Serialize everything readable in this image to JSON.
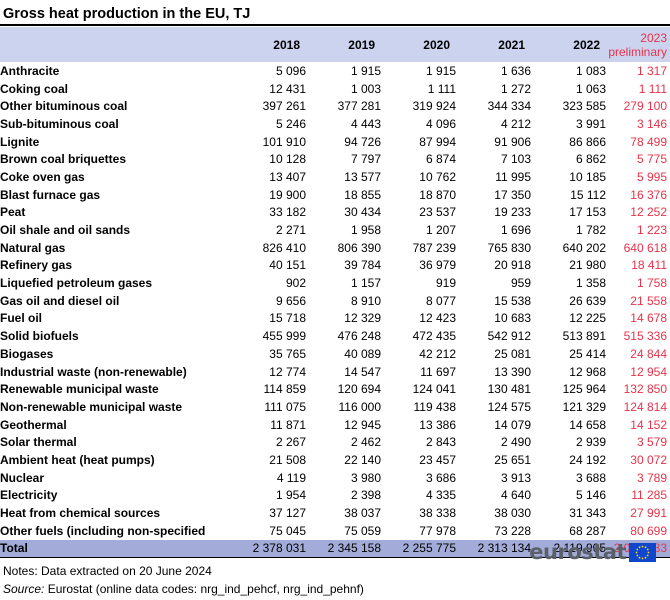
{
  "title": "Gross heat production in the EU, TJ",
  "columns": [
    "2018",
    "2019",
    "2020",
    "2021",
    "2022",
    "2023",
    "preliminary"
  ],
  "rows": [
    {
      "label": "Anthracite",
      "values": [
        "5 096",
        "1 915",
        "1 915",
        "1 636",
        "1 083",
        "1 317"
      ]
    },
    {
      "label": "Coking coal",
      "values": [
        "12 431",
        "1 003",
        "1 111",
        "1 272",
        "1 063",
        "1 111"
      ]
    },
    {
      "label": "Other bituminous coal",
      "values": [
        "397 261",
        "377 281",
        "319 924",
        "344 334",
        "323 585",
        "279 100"
      ]
    },
    {
      "label": "Sub-bituminous coal",
      "values": [
        "5 246",
        "4 443",
        "4 096",
        "4 212",
        "3 991",
        "3 146"
      ]
    },
    {
      "label": "Lignite",
      "values": [
        "101 910",
        "94 726",
        "87 994",
        "91 906",
        "86 866",
        "78 499"
      ]
    },
    {
      "label": "Brown coal briquettes",
      "values": [
        "10 128",
        "7 797",
        "6 874",
        "7 103",
        "6 862",
        "5 775"
      ]
    },
    {
      "label": "Coke oven gas",
      "values": [
        "13 407",
        "13 577",
        "10 762",
        "11 995",
        "10 185",
        "5 995"
      ]
    },
    {
      "label": "Blast furnace gas",
      "values": [
        "19 900",
        "18 855",
        "18 870",
        "17 350",
        "15 112",
        "16 376"
      ]
    },
    {
      "label": "Peat",
      "values": [
        "33 182",
        "30 434",
        "23 537",
        "19 233",
        "17 153",
        "12 252"
      ]
    },
    {
      "label": "Oil shale and oil sands",
      "values": [
        "2 271",
        "1 958",
        "1 207",
        "1 696",
        "1 782",
        "1 223"
      ]
    },
    {
      "label": "Natural gas",
      "values": [
        "826 410",
        "806 390",
        "787 239",
        "765 830",
        "640 202",
        "640 618"
      ]
    },
    {
      "label": "Refinery gas",
      "values": [
        "40 151",
        "39 784",
        "36 979",
        "20 918",
        "21 980",
        "18 411"
      ]
    },
    {
      "label": "Liquefied petroleum gases",
      "values": [
        "902",
        "1 157",
        "919",
        "959",
        "1 358",
        "1 758"
      ]
    },
    {
      "label": "Gas oil and diesel oil",
      "values": [
        "9 656",
        "8 910",
        "8 077",
        "15 538",
        "26 639",
        "21 558"
      ]
    },
    {
      "label": "Fuel oil",
      "values": [
        "15 718",
        "12 329",
        "12 423",
        "10 683",
        "12 225",
        "14 678"
      ]
    },
    {
      "label": "Solid biofuels",
      "values": [
        "455 999",
        "476 248",
        "472 435",
        "542 912",
        "513 891",
        "515 336"
      ]
    },
    {
      "label": "Biogases",
      "values": [
        "35 765",
        "40 089",
        "42 212",
        "25 081",
        "25 414",
        "24 844"
      ]
    },
    {
      "label": "Industrial waste (non-renewable)",
      "values": [
        "12 774",
        "14 547",
        "11 697",
        "13 390",
        "12 968",
        "12 954"
      ]
    },
    {
      "label": "Renewable municipal waste",
      "values": [
        "114 859",
        "120 694",
        "124 041",
        "130 481",
        "125 964",
        "132 850"
      ]
    },
    {
      "label": "Non-renewable municipal waste",
      "values": [
        "111 075",
        "116 000",
        "119 438",
        "124 575",
        "121 329",
        "124 814"
      ]
    },
    {
      "label": "Geothermal",
      "values": [
        "11 871",
        "12 945",
        "13 386",
        "14 079",
        "14 658",
        "14 152"
      ]
    },
    {
      "label": "Solar thermal",
      "values": [
        "2 267",
        "2 462",
        "2 843",
        "2 490",
        "2 939",
        "3 579"
      ]
    },
    {
      "label": "Ambient heat (heat pumps)",
      "values": [
        "21 508",
        "22 140",
        "23 457",
        "25 651",
        "24 192",
        "30 072"
      ]
    },
    {
      "label": "Nuclear",
      "values": [
        "4 119",
        "3 980",
        "3 686",
        "3 913",
        "3 688",
        "3 789"
      ]
    },
    {
      "label": "Electricity",
      "values": [
        "1 954",
        "2 398",
        "4 335",
        "4 640",
        "5 146",
        "11 285"
      ]
    },
    {
      "label": "Heat from chemical sources",
      "values": [
        "37 127",
        "38 037",
        "38 338",
        "38 030",
        "31 343",
        "27 991"
      ]
    },
    {
      "label": "Other fuels (including non-specified",
      "values": [
        "75 045",
        "75 059",
        "77 978",
        "73 228",
        "68 287",
        "80 699"
      ]
    }
  ],
  "total": {
    "label": "Total",
    "values": [
      "2 378 031",
      "2 345 158",
      "2 255 775",
      "2 313 134",
      "2 119 905",
      "2 084 183"
    ]
  },
  "notes": "Notes: Data extracted on 20 June 2024",
  "source_label": "Source:",
  "source_text": " Eurostat (online data codes: nrg_ind_pehcf, nrg_ind_pehnf)",
  "logo": {
    "text": "eurostat",
    "icon": "eu-flag-icon"
  },
  "colors": {
    "header_bg": "#ccd3ef",
    "total_bg": "#a3acd8",
    "preliminary": "#e8334a",
    "logo_text": "#5a6068",
    "flag_blue": "#0e47cb",
    "flag_star": "#ffd617"
  }
}
